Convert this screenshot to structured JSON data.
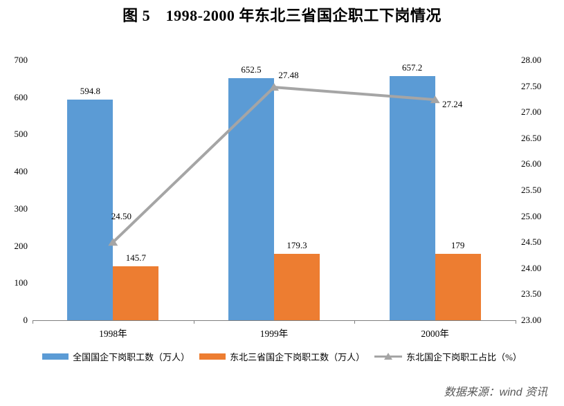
{
  "title": "图 5　1998-2000 年东北三省国企职工下岗情况",
  "source_note": "数据来源：wind 资讯",
  "colors": {
    "bar_national": "#5B9BD5",
    "bar_northeast": "#ED7D31",
    "line_ratio": "#A5A5A5",
    "axis_line": "#7F7F7F",
    "tick_text": "#000000",
    "source_text": "#595959"
  },
  "chart_data": {
    "type": "bar",
    "title": "图 5　1998-2000 年东北三省国企职工下岗情况",
    "categories": [
      "1998年",
      "1999年",
      "2000年"
    ],
    "series": [
      {
        "name": "全国国企下岗职工数（万人）",
        "type": "bar",
        "axis": "left",
        "color": "#5B9BD5",
        "values": [
          594.8,
          652.5,
          657.2
        ],
        "data_labels": [
          "594.8",
          "652.5",
          "657.2"
        ]
      },
      {
        "name": "东北三省国企下岗职工数（万人）",
        "type": "bar",
        "axis": "left",
        "color": "#ED7D31",
        "values": [
          145.7,
          179.3,
          179
        ],
        "data_labels": [
          "145.7",
          "179.3",
          "179"
        ]
      },
      {
        "name": "东北国企下岗职工占比（%）",
        "type": "line",
        "axis": "right",
        "color": "#A5A5A5",
        "values": [
          24.5,
          27.48,
          27.24
        ],
        "data_labels": [
          "24.50",
          "27.48",
          "27.24"
        ]
      }
    ],
    "left_axis": {
      "min": 0,
      "max": 700,
      "step": 100,
      "tick_labels": [
        "0",
        "100",
        "200",
        "300",
        "400",
        "500",
        "600",
        "700"
      ]
    },
    "right_axis": {
      "min": 23,
      "max": 28,
      "step": 0.5,
      "tick_labels": [
        "23.00",
        "23.50",
        "24.00",
        "24.50",
        "25.00",
        "25.50",
        "26.00",
        "26.50",
        "27.00",
        "27.50",
        "28.00"
      ]
    },
    "grid": false,
    "legend_position": "bottom"
  }
}
